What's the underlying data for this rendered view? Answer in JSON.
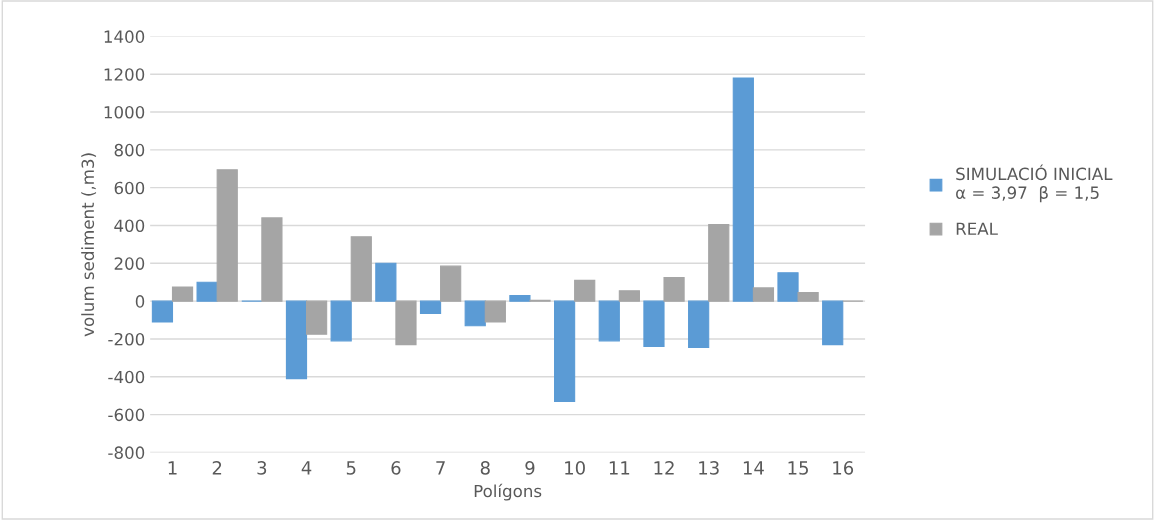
{
  "chart_data": {
    "type": "bar",
    "xlabel": "Polígons",
    "ylabel": "volum sediment (,m3)",
    "categories": [
      "1",
      "2",
      "3",
      "4",
      "5",
      "6",
      "7",
      "8",
      "9",
      "10",
      "11",
      "12",
      "13",
      "14",
      "15",
      "16"
    ],
    "series": [
      {
        "name": "SIMULACIÓ INICIAL\nα = 3,97  β = 1,5",
        "color": "#5b9bd5",
        "values": [
          -110,
          100,
          0,
          -410,
          -210,
          200,
          -65,
          -130,
          30,
          -530,
          -210,
          -240,
          -245,
          1180,
          150,
          -230
        ]
      },
      {
        "name": "REAL",
        "color": "#a5a5a5",
        "values": [
          75,
          695,
          440,
          -175,
          340,
          -230,
          185,
          -110,
          5,
          110,
          55,
          125,
          405,
          70,
          45,
          0
        ]
      }
    ],
    "ylim": [
      -800,
      1400
    ],
    "yticks": [
      -800,
      -600,
      -400,
      -200,
      0,
      200,
      400,
      600,
      800,
      1000,
      1200,
      1400
    ],
    "grid": "y",
    "legend": "right"
  }
}
